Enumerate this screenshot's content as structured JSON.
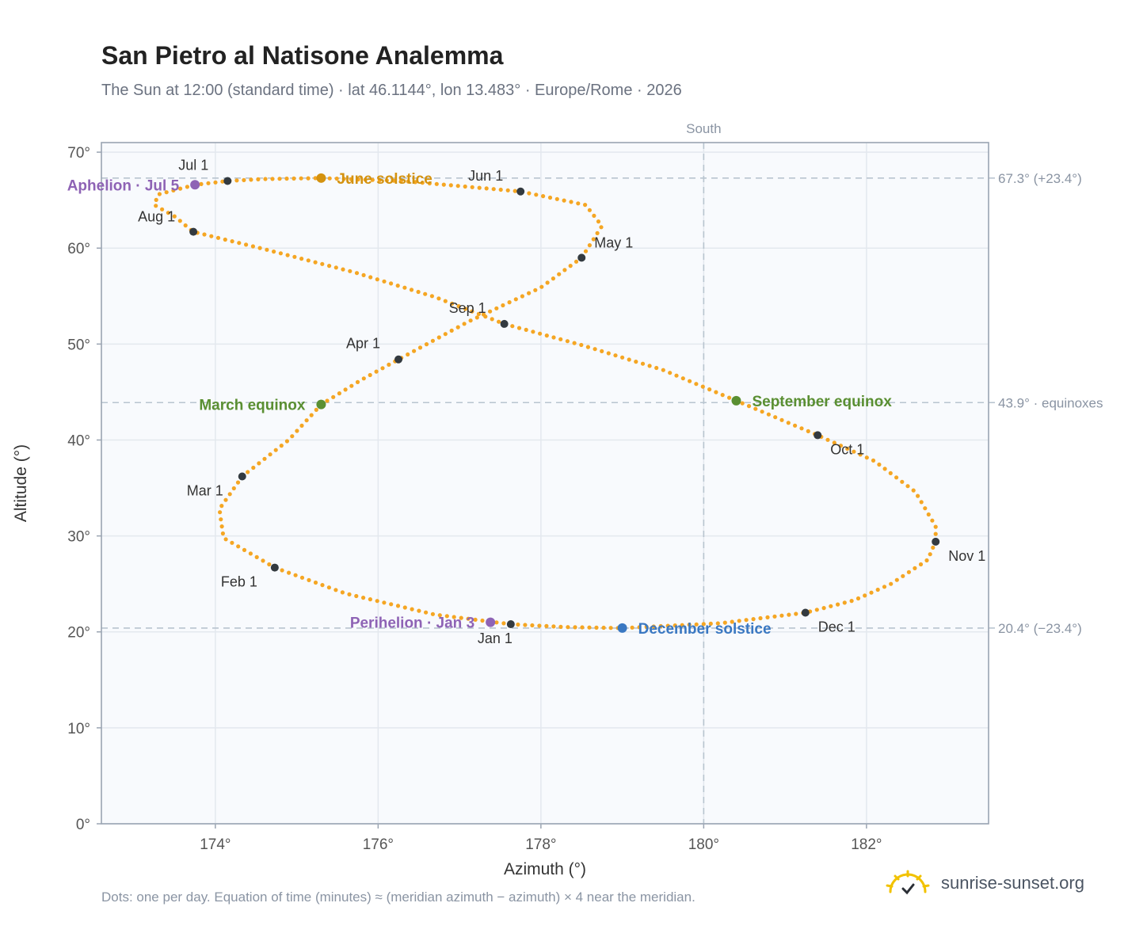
{
  "header": {
    "title": "San Pietro al Natisone Analemma",
    "subtitle": "The Sun at 12:00 (standard time) · lat 46.1144°, lon 13.483° · Europe/Rome · 2026"
  },
  "footer": {
    "note": "Dots: one per day. Equation of time (minutes) ≈ (meridian azimuth − azimuth) × 4 near the meridian.",
    "brand": "sunrise-sunset.org"
  },
  "chart_data": {
    "type": "scatter",
    "xlabel": "Azimuth (°)",
    "ylabel": "Altitude (°)",
    "xlim": [
      172.6,
      183.5
    ],
    "ylim": [
      0,
      71
    ],
    "xticks": [
      174,
      176,
      178,
      180,
      182
    ],
    "xtick_labels": [
      "174°",
      "176°",
      "178°",
      "180°",
      "182°"
    ],
    "yticks": [
      0,
      10,
      20,
      30,
      40,
      50,
      60,
      70
    ],
    "ytick_labels": [
      "0°",
      "10°",
      "20°",
      "30°",
      "40°",
      "50°",
      "60°",
      "70°"
    ],
    "grid": true,
    "meridian": {
      "azimuth": 180,
      "label": "South"
    },
    "reference_lines": [
      {
        "altitude": 67.3,
        "label": "67.3° (+23.4°)"
      },
      {
        "altitude": 43.9,
        "label": "43.9° · equinoxes"
      },
      {
        "altitude": 20.4,
        "label": "20.4° (−23.4°)"
      }
    ],
    "path": [
      {
        "az": 177.63,
        "alt": 20.8
      },
      {
        "az": 176.7,
        "alt": 21.8
      },
      {
        "az": 175.6,
        "alt": 24.0
      },
      {
        "az": 174.73,
        "alt": 26.7
      },
      {
        "az": 174.1,
        "alt": 29.8
      },
      {
        "az": 174.05,
        "alt": 32.8
      },
      {
        "az": 174.33,
        "alt": 36.2
      },
      {
        "az": 174.9,
        "alt": 40.0
      },
      {
        "az": 175.3,
        "alt": 43.7
      },
      {
        "az": 175.8,
        "alt": 46.3
      },
      {
        "az": 176.25,
        "alt": 48.4
      },
      {
        "az": 177.1,
        "alt": 52.3
      },
      {
        "az": 178.0,
        "alt": 55.9
      },
      {
        "az": 178.5,
        "alt": 59.0
      },
      {
        "az": 178.75,
        "alt": 62.3
      },
      {
        "az": 178.55,
        "alt": 64.5
      },
      {
        "az": 177.75,
        "alt": 65.9
      },
      {
        "az": 176.3,
        "alt": 67.0
      },
      {
        "az": 175.3,
        "alt": 67.3
      },
      {
        "az": 174.6,
        "alt": 67.2
      },
      {
        "az": 174.15,
        "alt": 67.0
      },
      {
        "az": 173.75,
        "alt": 66.6
      },
      {
        "az": 173.3,
        "alt": 65.6
      },
      {
        "az": 173.25,
        "alt": 64.5
      },
      {
        "az": 173.5,
        "alt": 63.3
      },
      {
        "az": 173.73,
        "alt": 61.7
      },
      {
        "az": 174.6,
        "alt": 59.9
      },
      {
        "az": 175.7,
        "alt": 57.5
      },
      {
        "az": 176.7,
        "alt": 54.9
      },
      {
        "az": 177.55,
        "alt": 52.1
      },
      {
        "az": 178.5,
        "alt": 49.9
      },
      {
        "az": 179.5,
        "alt": 47.3
      },
      {
        "az": 180.4,
        "alt": 44.1
      },
      {
        "az": 180.9,
        "alt": 42.3
      },
      {
        "az": 181.4,
        "alt": 40.5
      },
      {
        "az": 182.1,
        "alt": 37.8
      },
      {
        "az": 182.6,
        "alt": 34.6
      },
      {
        "az": 182.85,
        "alt": 31.0
      },
      {
        "az": 182.85,
        "alt": 29.4
      },
      {
        "az": 182.75,
        "alt": 27.5
      },
      {
        "az": 182.3,
        "alt": 25.0
      },
      {
        "az": 181.85,
        "alt": 23.3
      },
      {
        "az": 181.25,
        "alt": 22.0
      },
      {
        "az": 180.2,
        "alt": 20.9
      },
      {
        "az": 179.0,
        "alt": 20.4
      },
      {
        "az": 178.3,
        "alt": 20.5
      },
      {
        "az": 177.63,
        "alt": 20.8
      }
    ],
    "month_markers": [
      {
        "label": "Jan 1",
        "az": 177.63,
        "alt": 20.8
      },
      {
        "label": "Feb 1",
        "az": 174.73,
        "alt": 26.7
      },
      {
        "label": "Mar 1",
        "az": 174.33,
        "alt": 36.2
      },
      {
        "label": "Apr 1",
        "az": 176.25,
        "alt": 48.4
      },
      {
        "label": "May 1",
        "az": 178.5,
        "alt": 59.0
      },
      {
        "label": "Jun 1",
        "az": 177.75,
        "alt": 65.9
      },
      {
        "label": "Jul 1",
        "az": 174.15,
        "alt": 67.0
      },
      {
        "label": "Aug 1",
        "az": 173.73,
        "alt": 61.7
      },
      {
        "label": "Sep 1",
        "az": 177.55,
        "alt": 52.1
      },
      {
        "label": "Oct 1",
        "az": 181.4,
        "alt": 40.5
      },
      {
        "label": "Nov 1",
        "az": 182.85,
        "alt": 29.4
      },
      {
        "label": "Dec 1",
        "az": 181.25,
        "alt": 22.0
      }
    ],
    "events": [
      {
        "label": "June solstice",
        "az": 175.3,
        "alt": 67.3,
        "color": "#d4920f"
      },
      {
        "label": "December solstice",
        "az": 179.0,
        "alt": 20.4,
        "color": "#3a78c2"
      },
      {
        "label": "March equinox",
        "az": 175.3,
        "alt": 43.7,
        "color": "#5a8f32"
      },
      {
        "label": "September equinox",
        "az": 180.4,
        "alt": 44.1,
        "color": "#5a8f32"
      },
      {
        "label": "Aphelion · Jul 5",
        "az": 173.75,
        "alt": 66.6,
        "color": "#8e63b5"
      },
      {
        "label": "Perihelion · Jan 3",
        "az": 177.38,
        "alt": 21.0,
        "color": "#8e63b5"
      }
    ],
    "colors": {
      "path": "#f5a623",
      "marker": "#333a40"
    }
  }
}
